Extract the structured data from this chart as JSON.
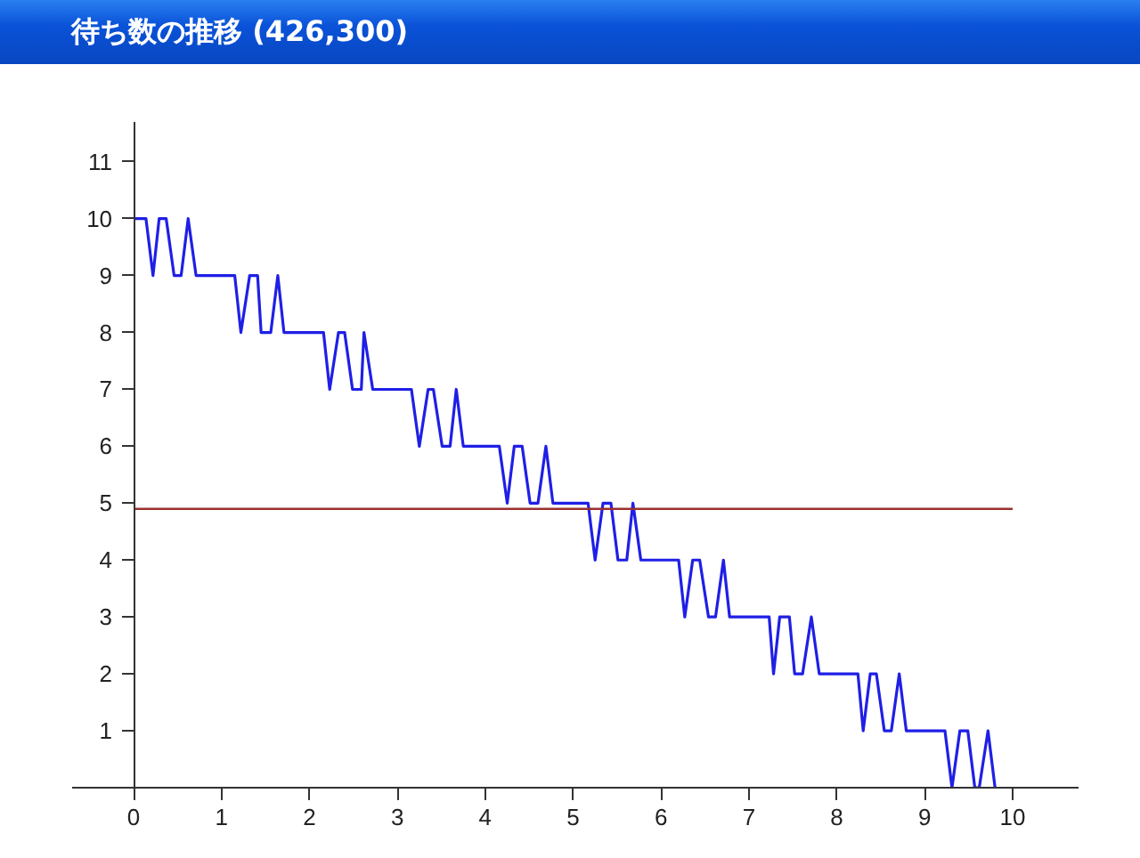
{
  "chart_data": {
    "type": "line",
    "title": "待ち数の推移 (426,300)",
    "x": [
      0,
      0.14,
      0.22,
      0.29,
      0.37,
      0.46,
      0.54,
      0.62,
      0.71,
      1.15,
      1.22,
      1.32,
      1.41,
      1.45,
      1.56,
      1.64,
      1.71,
      2.16,
      2.23,
      2.33,
      2.4,
      2.49,
      2.59,
      2.62,
      2.72,
      3.16,
      3.25,
      3.35,
      3.41,
      3.51,
      3.6,
      3.67,
      3.75,
      4.16,
      4.25,
      4.33,
      4.42,
      4.51,
      4.6,
      4.69,
      4.77,
      5.17,
      5.25,
      5.34,
      5.43,
      5.51,
      5.61,
      5.68,
      5.77,
      6.2,
      6.27,
      6.36,
      6.44,
      6.54,
      6.62,
      6.71,
      6.78,
      7.23,
      7.28,
      7.35,
      7.46,
      7.52,
      7.61,
      7.71,
      7.8,
      8.24,
      8.3,
      8.38,
      8.45,
      8.54,
      8.62,
      8.71,
      8.79,
      9.23,
      9.31,
      9.4,
      9.49,
      9.57,
      9.62,
      9.72,
      9.8
    ],
    "series": [
      {
        "color": "#1f1fe6",
        "values": [
          10,
          10,
          9,
          10,
          10,
          9,
          9,
          10,
          9,
          9,
          8,
          9,
          9,
          8,
          8,
          9,
          8,
          8,
          7,
          8,
          8,
          7,
          7,
          8,
          7,
          7,
          6,
          7,
          7,
          6,
          6,
          7,
          6,
          6,
          5,
          6,
          6,
          5,
          5,
          6,
          5,
          5,
          4,
          5,
          5,
          4,
          4,
          5,
          4,
          4,
          3,
          4,
          4,
          3,
          3,
          4,
          3,
          3,
          2,
          3,
          3,
          2,
          2,
          3,
          2,
          2,
          1,
          2,
          2,
          1,
          1,
          2,
          1,
          1,
          0,
          1,
          1,
          0,
          0,
          1,
          0
        ]
      }
    ],
    "xlim": [
      -0.7,
      10.75
    ],
    "ylim": [
      0,
      11.7
    ],
    "xticks": [
      0,
      1,
      2,
      3,
      4,
      5,
      6,
      7,
      8,
      9,
      10
    ],
    "yticks": [
      1,
      2,
      3,
      4,
      5,
      6,
      7,
      8,
      9,
      10,
      11
    ],
    "ref_lines": [
      {
        "axis": "y",
        "value": 4.9,
        "color": "#9b3030"
      }
    ]
  }
}
